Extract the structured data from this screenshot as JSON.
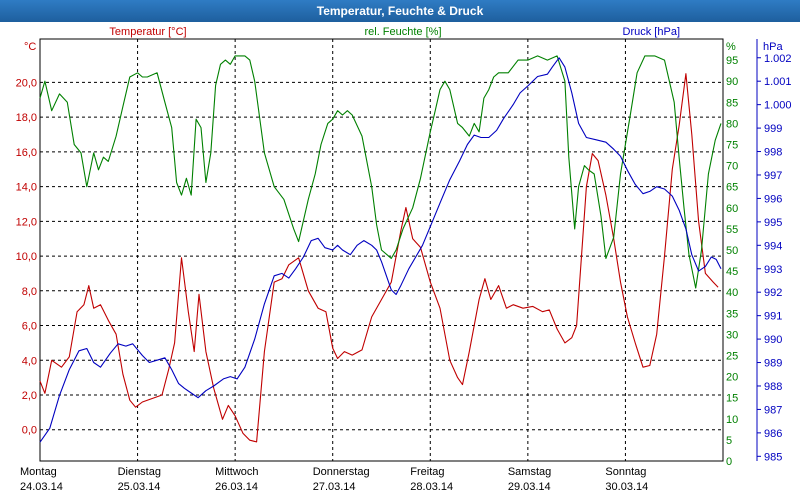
{
  "window": {
    "title": "Temperatur, Feuchte & Druck"
  },
  "chart_data": {
    "type": "line",
    "title": "Temperatur, Feuchte & Druck",
    "grid": true,
    "colors": {
      "temperature": "#c00000",
      "humidity": "#008000",
      "pressure": "#0000c0"
    },
    "axes": {
      "temperature": {
        "unit_label": "°C",
        "ylim": [
          -1.8,
          22.5
        ],
        "ticks": [
          "0,0",
          "2,0",
          "4,0",
          "6,0",
          "8,0",
          "10,0",
          "12,0",
          "14,0",
          "16,0",
          "18,0",
          "20,0"
        ]
      },
      "humidity": {
        "unit_label": "%",
        "ylim": [
          0,
          100
        ],
        "ticks": [
          "0",
          "5",
          "10",
          "15",
          "20",
          "25",
          "30",
          "35",
          "40",
          "45",
          "50",
          "55",
          "60",
          "65",
          "70",
          "75",
          "80",
          "85",
          "90",
          "95"
        ]
      },
      "pressure": {
        "unit_label": "hPa",
        "ylim": [
          984.8,
          1002.8
        ],
        "ticks": [
          "985",
          "986",
          "987",
          "988",
          "989",
          "990",
          "991",
          "992",
          "993",
          "994",
          "995",
          "996",
          "997",
          "998",
          "999",
          "1.000",
          "1.001",
          "1.002"
        ]
      }
    },
    "x_axis": {
      "range_days": [
        0,
        7
      ],
      "labels": [
        {
          "day": "Montag",
          "date": "24.03.14"
        },
        {
          "day": "Dienstag",
          "date": "25.03.14"
        },
        {
          "day": "Mittwoch",
          "date": "26.03.14"
        },
        {
          "day": "Donnerstag",
          "date": "27.03.14"
        },
        {
          "day": "Freitag",
          "date": "28.03.14"
        },
        {
          "day": "Samstag",
          "date": "29.03.14"
        },
        {
          "day": "Sonntag",
          "date": "30.03.14"
        }
      ]
    },
    "series": [
      {
        "name": "Temperatur [°C]",
        "key": "temperature",
        "axis": "temperature",
        "points": [
          [
            0.0,
            2.8
          ],
          [
            0.05,
            2.1
          ],
          [
            0.12,
            4.0
          ],
          [
            0.22,
            3.6
          ],
          [
            0.3,
            4.2
          ],
          [
            0.38,
            6.8
          ],
          [
            0.45,
            7.2
          ],
          [
            0.5,
            8.3
          ],
          [
            0.55,
            7.0
          ],
          [
            0.62,
            7.2
          ],
          [
            0.7,
            6.3
          ],
          [
            0.78,
            5.5
          ],
          [
            0.85,
            3.2
          ],
          [
            0.92,
            1.7
          ],
          [
            0.98,
            1.3
          ],
          [
            1.05,
            1.6
          ],
          [
            1.15,
            1.8
          ],
          [
            1.25,
            2.0
          ],
          [
            1.32,
            3.5
          ],
          [
            1.38,
            5.0
          ],
          [
            1.45,
            9.9
          ],
          [
            1.52,
            6.8
          ],
          [
            1.58,
            4.5
          ],
          [
            1.63,
            7.8
          ],
          [
            1.7,
            4.5
          ],
          [
            1.78,
            2.4
          ],
          [
            1.87,
            0.6
          ],
          [
            1.93,
            1.4
          ],
          [
            2.0,
            0.8
          ],
          [
            2.08,
            -0.2
          ],
          [
            2.15,
            -0.6
          ],
          [
            2.22,
            -0.7
          ],
          [
            2.3,
            4.5
          ],
          [
            2.4,
            8.5
          ],
          [
            2.48,
            8.7
          ],
          [
            2.55,
            9.5
          ],
          [
            2.65,
            9.9
          ],
          [
            2.75,
            8.0
          ],
          [
            2.85,
            7.0
          ],
          [
            2.93,
            6.8
          ],
          [
            3.0,
            4.7
          ],
          [
            3.05,
            4.1
          ],
          [
            3.12,
            4.5
          ],
          [
            3.2,
            4.3
          ],
          [
            3.3,
            4.6
          ],
          [
            3.4,
            6.5
          ],
          [
            3.5,
            7.5
          ],
          [
            3.6,
            8.5
          ],
          [
            3.7,
            11.5
          ],
          [
            3.75,
            12.8
          ],
          [
            3.82,
            11.0
          ],
          [
            3.9,
            10.5
          ],
          [
            4.0,
            8.5
          ],
          [
            4.1,
            7.0
          ],
          [
            4.2,
            4.0
          ],
          [
            4.28,
            3.0
          ],
          [
            4.33,
            2.6
          ],
          [
            4.4,
            4.5
          ],
          [
            4.5,
            7.5
          ],
          [
            4.56,
            8.7
          ],
          [
            4.62,
            7.5
          ],
          [
            4.7,
            8.3
          ],
          [
            4.78,
            7.0
          ],
          [
            4.85,
            7.2
          ],
          [
            4.95,
            7.0
          ],
          [
            5.05,
            7.1
          ],
          [
            5.15,
            6.8
          ],
          [
            5.22,
            6.9
          ],
          [
            5.3,
            5.8
          ],
          [
            5.38,
            5.0
          ],
          [
            5.45,
            5.3
          ],
          [
            5.5,
            6.0
          ],
          [
            5.55,
            10.0
          ],
          [
            5.6,
            14.0
          ],
          [
            5.66,
            15.9
          ],
          [
            5.72,
            15.5
          ],
          [
            5.8,
            13.5
          ],
          [
            5.88,
            11.0
          ],
          [
            5.95,
            8.5
          ],
          [
            6.02,
            6.5
          ],
          [
            6.1,
            5.0
          ],
          [
            6.18,
            3.6
          ],
          [
            6.25,
            3.7
          ],
          [
            6.32,
            5.5
          ],
          [
            6.4,
            10.0
          ],
          [
            6.48,
            15.0
          ],
          [
            6.55,
            17.5
          ],
          [
            6.62,
            20.5
          ],
          [
            6.68,
            17.0
          ],
          [
            6.75,
            12.0
          ],
          [
            6.82,
            9.0
          ],
          [
            6.9,
            8.5
          ],
          [
            6.95,
            8.2
          ]
        ]
      },
      {
        "name": "rel. Feuchte [%]",
        "key": "humidity",
        "axis": "humidity",
        "points": [
          [
            0.0,
            86
          ],
          [
            0.05,
            90
          ],
          [
            0.12,
            83
          ],
          [
            0.2,
            87
          ],
          [
            0.28,
            85
          ],
          [
            0.35,
            75
          ],
          [
            0.42,
            73
          ],
          [
            0.48,
            65
          ],
          [
            0.55,
            73
          ],
          [
            0.6,
            69
          ],
          [
            0.65,
            72
          ],
          [
            0.7,
            71
          ],
          [
            0.78,
            77
          ],
          [
            0.85,
            84
          ],
          [
            0.92,
            91
          ],
          [
            1.0,
            92
          ],
          [
            1.05,
            91
          ],
          [
            1.1,
            91
          ],
          [
            1.2,
            92
          ],
          [
            1.28,
            85
          ],
          [
            1.35,
            79
          ],
          [
            1.4,
            66
          ],
          [
            1.45,
            63
          ],
          [
            1.5,
            67
          ],
          [
            1.55,
            63
          ],
          [
            1.6,
            81
          ],
          [
            1.65,
            79
          ],
          [
            1.7,
            66
          ],
          [
            1.75,
            73
          ],
          [
            1.8,
            89
          ],
          [
            1.85,
            94
          ],
          [
            1.9,
            95
          ],
          [
            1.95,
            94
          ],
          [
            2.0,
            96
          ],
          [
            2.05,
            96
          ],
          [
            2.1,
            96
          ],
          [
            2.15,
            95
          ],
          [
            2.2,
            90
          ],
          [
            2.3,
            73
          ],
          [
            2.4,
            65
          ],
          [
            2.5,
            62
          ],
          [
            2.6,
            55
          ],
          [
            2.65,
            52
          ],
          [
            2.75,
            62
          ],
          [
            2.82,
            68
          ],
          [
            2.88,
            75
          ],
          [
            2.95,
            80
          ],
          [
            3.0,
            81
          ],
          [
            3.05,
            83
          ],
          [
            3.1,
            82
          ],
          [
            3.15,
            83
          ],
          [
            3.2,
            82
          ],
          [
            3.3,
            77
          ],
          [
            3.4,
            65
          ],
          [
            3.45,
            56
          ],
          [
            3.5,
            50
          ],
          [
            3.6,
            48
          ],
          [
            3.65,
            50
          ],
          [
            3.72,
            55
          ],
          [
            3.82,
            60
          ],
          [
            3.9,
            67
          ],
          [
            4.0,
            78
          ],
          [
            4.05,
            83
          ],
          [
            4.1,
            88
          ],
          [
            4.15,
            90
          ],
          [
            4.2,
            88
          ],
          [
            4.28,
            80
          ],
          [
            4.33,
            79
          ],
          [
            4.4,
            77
          ],
          [
            4.45,
            80
          ],
          [
            4.5,
            78
          ],
          [
            4.55,
            86
          ],
          [
            4.6,
            88
          ],
          [
            4.65,
            91
          ],
          [
            4.7,
            92
          ],
          [
            4.8,
            92
          ],
          [
            4.9,
            95
          ],
          [
            5.0,
            95
          ],
          [
            5.1,
            96
          ],
          [
            5.2,
            95
          ],
          [
            5.3,
            96
          ],
          [
            5.38,
            90
          ],
          [
            5.42,
            72
          ],
          [
            5.48,
            55
          ],
          [
            5.52,
            65
          ],
          [
            5.58,
            70
          ],
          [
            5.62,
            69
          ],
          [
            5.68,
            68
          ],
          [
            5.75,
            58
          ],
          [
            5.8,
            48
          ],
          [
            5.88,
            53
          ],
          [
            5.95,
            68
          ],
          [
            6.05,
            82
          ],
          [
            6.12,
            92
          ],
          [
            6.2,
            96
          ],
          [
            6.3,
            96
          ],
          [
            6.4,
            95
          ],
          [
            6.5,
            85
          ],
          [
            6.55,
            72
          ],
          [
            6.6,
            60
          ],
          [
            6.65,
            49
          ],
          [
            6.72,
            41
          ],
          [
            6.78,
            50
          ],
          [
            6.85,
            68
          ],
          [
            6.92,
            76
          ],
          [
            6.98,
            80
          ]
        ]
      },
      {
        "name": "Druck [hPa]",
        "key": "pressure",
        "axis": "pressure",
        "points": [
          [
            0.0,
            985.6
          ],
          [
            0.1,
            986.2
          ],
          [
            0.2,
            987.6
          ],
          [
            0.3,
            988.7
          ],
          [
            0.4,
            989.5
          ],
          [
            0.48,
            989.6
          ],
          [
            0.55,
            989.0
          ],
          [
            0.62,
            988.8
          ],
          [
            0.72,
            989.4
          ],
          [
            0.8,
            989.8
          ],
          [
            0.88,
            989.7
          ],
          [
            0.95,
            989.8
          ],
          [
            1.05,
            989.3
          ],
          [
            1.12,
            989.0
          ],
          [
            1.2,
            989.1
          ],
          [
            1.28,
            989.2
          ],
          [
            1.35,
            988.7
          ],
          [
            1.42,
            988.1
          ],
          [
            1.48,
            987.9
          ],
          [
            1.55,
            987.7
          ],
          [
            1.62,
            987.5
          ],
          [
            1.7,
            987.8
          ],
          [
            1.78,
            988.0
          ],
          [
            1.88,
            988.3
          ],
          [
            1.95,
            988.4
          ],
          [
            2.02,
            988.3
          ],
          [
            2.1,
            988.8
          ],
          [
            2.2,
            990.0
          ],
          [
            2.3,
            991.5
          ],
          [
            2.4,
            992.7
          ],
          [
            2.48,
            992.8
          ],
          [
            2.55,
            992.6
          ],
          [
            2.62,
            993.0
          ],
          [
            2.7,
            993.5
          ],
          [
            2.78,
            994.2
          ],
          [
            2.85,
            994.3
          ],
          [
            2.92,
            993.9
          ],
          [
            3.0,
            993.8
          ],
          [
            3.05,
            994.0
          ],
          [
            3.1,
            993.8
          ],
          [
            3.18,
            993.6
          ],
          [
            3.25,
            994.0
          ],
          [
            3.32,
            994.2
          ],
          [
            3.4,
            994.0
          ],
          [
            3.45,
            993.8
          ],
          [
            3.5,
            993.3
          ],
          [
            3.55,
            992.7
          ],
          [
            3.6,
            992.1
          ],
          [
            3.65,
            991.9
          ],
          [
            3.7,
            992.3
          ],
          [
            3.78,
            993.0
          ],
          [
            3.85,
            993.5
          ],
          [
            3.92,
            994.0
          ],
          [
            4.0,
            994.8
          ],
          [
            4.1,
            995.8
          ],
          [
            4.2,
            996.8
          ],
          [
            4.3,
            997.6
          ],
          [
            4.38,
            998.3
          ],
          [
            4.45,
            998.7
          ],
          [
            4.52,
            998.6
          ],
          [
            4.6,
            998.6
          ],
          [
            4.68,
            998.9
          ],
          [
            4.75,
            999.4
          ],
          [
            4.85,
            1000.0
          ],
          [
            4.92,
            1000.5
          ],
          [
            5.0,
            1000.8
          ],
          [
            5.1,
            1001.2
          ],
          [
            5.2,
            1001.3
          ],
          [
            5.25,
            1001.6
          ],
          [
            5.32,
            1002.0
          ],
          [
            5.38,
            1001.6
          ],
          [
            5.45,
            1000.5
          ],
          [
            5.52,
            999.2
          ],
          [
            5.6,
            998.6
          ],
          [
            5.7,
            998.5
          ],
          [
            5.8,
            998.4
          ],
          [
            5.88,
            998.1
          ],
          [
            5.95,
            997.8
          ],
          [
            6.02,
            997.2
          ],
          [
            6.1,
            996.6
          ],
          [
            6.18,
            996.2
          ],
          [
            6.25,
            996.3
          ],
          [
            6.32,
            996.5
          ],
          [
            6.4,
            996.4
          ],
          [
            6.48,
            996.1
          ],
          [
            6.55,
            995.5
          ],
          [
            6.62,
            994.7
          ],
          [
            6.68,
            993.6
          ],
          [
            6.75,
            992.9
          ],
          [
            6.82,
            993.1
          ],
          [
            6.88,
            993.5
          ],
          [
            6.93,
            993.4
          ],
          [
            6.98,
            993.0
          ]
        ]
      }
    ]
  }
}
